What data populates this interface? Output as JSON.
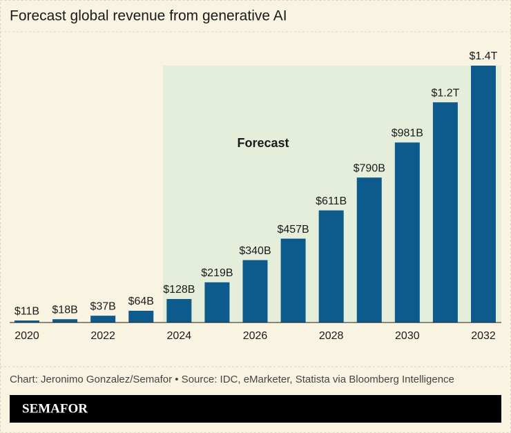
{
  "chart_data": {
    "type": "bar",
    "title": "Forecast global revenue from generative AI",
    "annotation": "Forecast",
    "categories": [
      "2020",
      null,
      "2022",
      null,
      "2024",
      null,
      "2026",
      null,
      "2028",
      null,
      "2030",
      null,
      "2032"
    ],
    "values": [
      11,
      18,
      37,
      64,
      128,
      219,
      340,
      457,
      611,
      790,
      981,
      1200,
      1400
    ],
    "value_labels": [
      "$11B",
      "$18B",
      "$37B",
      "$64B",
      "$128B",
      "$219B",
      "$340B",
      "$457B",
      "$611B",
      "$790B",
      "$981B",
      "$1.2T",
      "$1.4T"
    ],
    "color": "#0d5b8c",
    "ylim": [
      0,
      1400
    ],
    "source": "Chart: Jeronimo Gonzalez/Semafor • Source: IDC, eMarketer, Statista via Bloomberg Intelligence",
    "brand": "SEMAFOR"
  }
}
